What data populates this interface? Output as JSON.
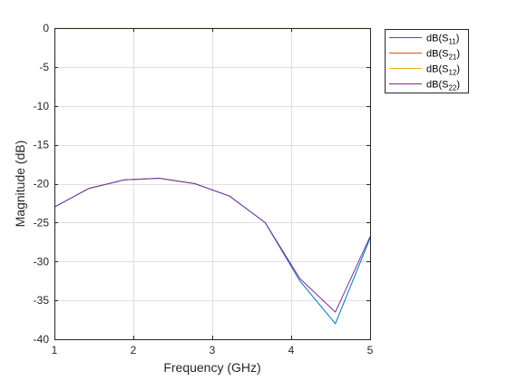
{
  "chart_data": {
    "type": "line",
    "title": "",
    "xlabel": "Frequency (GHz)",
    "ylabel": "Magnitude (dB)",
    "xlim": [
      1,
      5
    ],
    "ylim": [
      -40,
      0
    ],
    "xticks": [
      1,
      2,
      3,
      4,
      5
    ],
    "yticks": [
      0,
      -5,
      -10,
      -15,
      -20,
      -25,
      -30,
      -35,
      -40
    ],
    "grid": true,
    "legend_position": "outside-top-right",
    "x": [
      1.0,
      1.44,
      1.89,
      2.33,
      2.78,
      3.22,
      3.67,
      4.11,
      4.56,
      5.0
    ],
    "series": [
      {
        "name": "dB(S11)",
        "legend": {
          "prefix": "dB(S",
          "sub": "11",
          "suffix": ")"
        },
        "color": "#0072BD",
        "values": [
          -23.0,
          -20.6,
          -19.5,
          -19.3,
          -20.0,
          -21.6,
          -25.0,
          -32.5,
          -38.0,
          -27.0
        ]
      },
      {
        "name": "dB(S21)",
        "legend": {
          "prefix": "dB(S",
          "sub": "21",
          "suffix": ")"
        },
        "color": "#D95319",
        "values": [
          -0.05,
          -0.05,
          -0.05,
          -0.05,
          -0.05,
          -0.05,
          -0.05,
          -0.05,
          -0.05,
          -0.05
        ]
      },
      {
        "name": "dB(S12)",
        "legend": {
          "prefix": "dB(S",
          "sub": "12",
          "suffix": ")"
        },
        "color": "#EDB120",
        "values": [
          -0.05,
          -0.05,
          -0.05,
          -0.05,
          -0.05,
          -0.05,
          -0.05,
          -0.05,
          -0.05,
          -0.05
        ]
      },
      {
        "name": "dB(S22)",
        "legend": {
          "prefix": "dB(S",
          "sub": "22",
          "suffix": ")"
        },
        "color": "#7E2F8E",
        "values": [
          -23.0,
          -20.6,
          -19.5,
          -19.3,
          -20.0,
          -21.6,
          -25.0,
          -32.2,
          -36.5,
          -26.8
        ]
      }
    ]
  }
}
